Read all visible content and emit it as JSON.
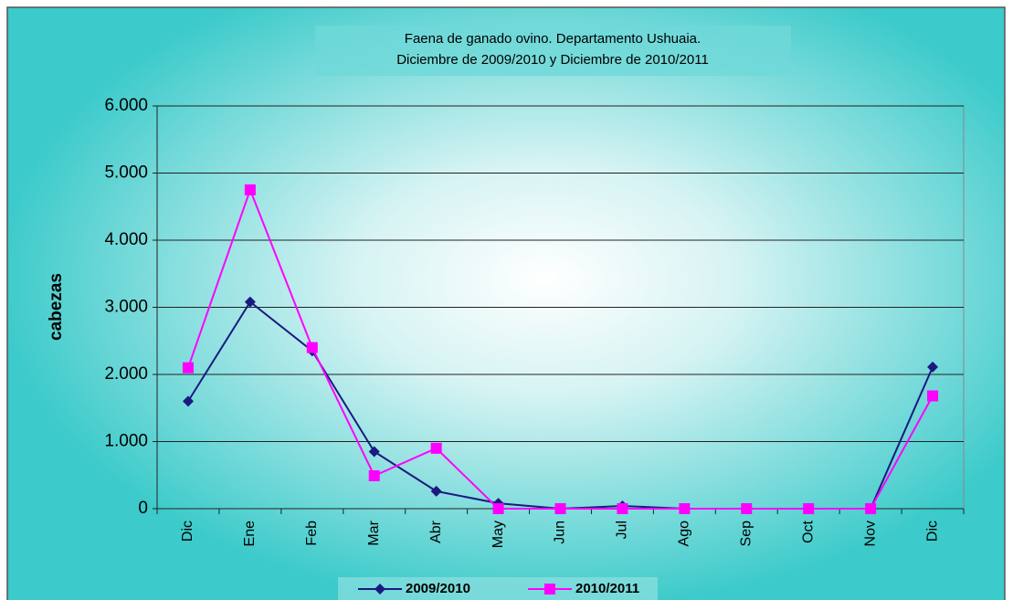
{
  "chart_data": {
    "type": "line",
    "title": [
      "Faena de ganado ovino. Departamento Ushuaia.",
      "Diciembre de 2009/2010  y Diciembre de 2010/2011"
    ],
    "y_label": "cabezas",
    "categories": [
      "Dic",
      "Ene",
      "Feb",
      "Mar",
      "Abr",
      "May",
      "Jun",
      "Jul",
      "Ago",
      "Sep",
      "Oct",
      "Nov",
      "Dic"
    ],
    "series": [
      {
        "name": "2009/2010",
        "color": "#1a1a80",
        "marker": "diamond",
        "values": [
          1600,
          3080,
          2350,
          850,
          260,
          80,
          0,
          40,
          0,
          0,
          0,
          0,
          2110
        ]
      },
      {
        "name": "2010/2011",
        "color": "#ff00ff",
        "marker": "square",
        "values": [
          2100,
          4750,
          2400,
          490,
          900,
          0,
          0,
          0,
          0,
          0,
          0,
          0,
          1680
        ]
      }
    ],
    "ylim": [
      0,
      6000
    ],
    "yticks": [
      0,
      {
        "value": 1000,
        "label": "1.000"
      },
      {
        "value": 2000,
        "label": "2.000"
      },
      {
        "value": 3000,
        "label": "3.000"
      },
      {
        "value": 4000,
        "label": "4.000"
      },
      {
        "value": 5000,
        "label": "5.000"
      },
      {
        "value": 6000,
        "label": "6.000"
      }
    ],
    "grid": true,
    "legend": "bottom"
  }
}
